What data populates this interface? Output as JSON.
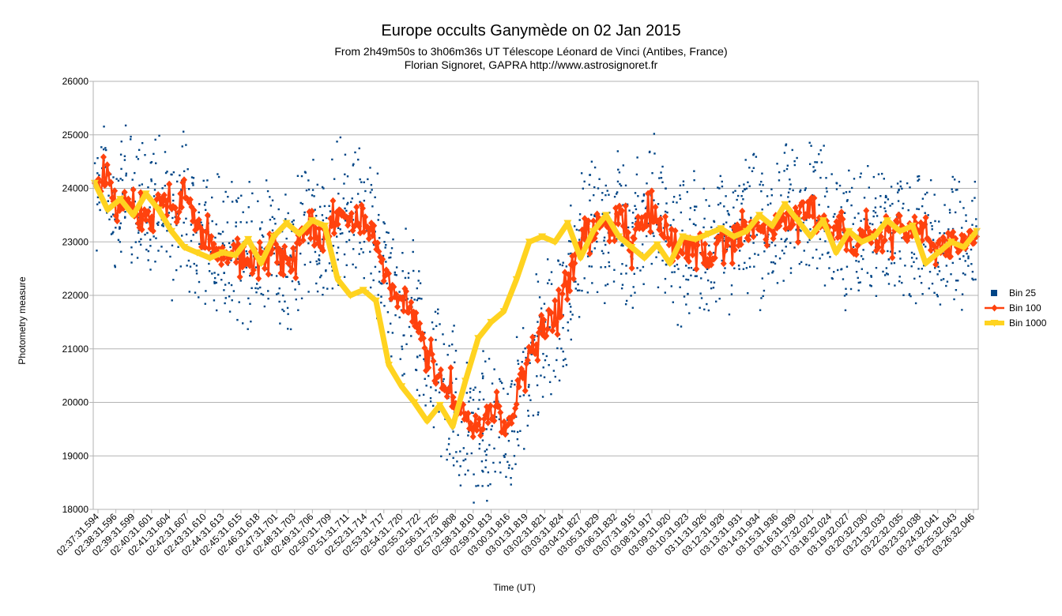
{
  "chart_data": {
    "type": "line",
    "title": "Europe occults Ganymède on 02 Jan 2015",
    "subtitle_lines": [
      "From 2h49m50s to 3h06m36s UT  Télescope Léonard de Vinci (Antibes, France)",
      "Florian Signoret, GAPRA http://www.astrosignoret.fr"
    ],
    "xlabel": "Time (UT)",
    "ylabel": "Photometry measure",
    "ylim": [
      18000,
      26000
    ],
    "yticks": [
      18000,
      19000,
      20000,
      21000,
      22000,
      23000,
      24000,
      25000,
      26000
    ],
    "grid": true,
    "legend_position": "right",
    "x_tick_labels": [
      "02:37:31.594",
      "02:38:31.596",
      "02:39:31.599",
      "02:40:31.601",
      "02:41:31.604",
      "02:42:31.607",
      "02:43:31.610",
      "02:44:31.613",
      "02:45:31.615",
      "02:46:31.618",
      "02:47:31.701",
      "02:48:31.703",
      "02:49:31.706",
      "02:50:31.709",
      "02:51:31.711",
      "02:52:31.714",
      "02:53:31.717",
      "02:54:31.720",
      "02:55:31.722",
      "02:56:31.725",
      "02:57:31.808",
      "02:58:31.810",
      "02:59:31.813",
      "03:00:31.816",
      "03:01:31.819",
      "03:02:31.821",
      "03:03:31.824",
      "03:04:31.827",
      "03:05:31.829",
      "03:06:31.832",
      "03:07:31.915",
      "03:08:31.917",
      "03:09:31.920",
      "03:10:31.923",
      "03:11:31.926",
      "03:12:31.928",
      "03:13:31.931",
      "03:14:31.934",
      "03:15:31.936",
      "03:16:31.939",
      "03:17:32.021",
      "03:18:32.024",
      "03:19:32.027",
      "03:20:32.030",
      "03:21:32.033",
      "03:22:32.035",
      "03:23:32.038",
      "03:24:32.041",
      "03:25:32.043",
      "03:26:32.046"
    ],
    "series": [
      {
        "name": "Bin 25",
        "style": "scatter",
        "color": "#004586",
        "values": [
          23800,
          24200,
          23500,
          23900,
          23600,
          23400,
          23800,
          23300,
          23900,
          23200,
          22900,
          22800,
          22700,
          22900,
          22600,
          22800,
          23000,
          22500,
          22700,
          23400,
          23000,
          23200,
          23600,
          23300,
          23500,
          23200,
          22200,
          21900,
          21800,
          21400,
          20700,
          20300,
          20000,
          19700,
          19400,
          19600,
          19800,
          19300,
          20200,
          20900,
          21300,
          21500,
          21800,
          22500,
          23200,
          23300,
          23100,
          23400,
          22800,
          23500,
          23700,
          23200,
          22900,
          22800,
          23000,
          22600,
          23100,
          23000,
          23200,
          23300,
          23100,
          23200,
          23500,
          23400,
          23800,
          23600,
          23100,
          23200,
          22900,
          23300,
          23000,
          23100,
          23400,
          23200,
          23300,
          22700,
          22800,
          23000,
          22800,
          23200
        ]
      },
      {
        "name": "Bin 100",
        "style": "line-diamond",
        "color": "#ff420e",
        "values": [
          23900,
          24300,
          23600,
          23900,
          23500,
          23300,
          23900,
          23400,
          24000,
          23300,
          23000,
          22800,
          22700,
          22800,
          22600,
          22800,
          23000,
          22500,
          22800,
          23300,
          23000,
          23300,
          23500,
          23400,
          23400,
          23100,
          22300,
          22000,
          21900,
          21500,
          20800,
          20400,
          20100,
          19800,
          19500,
          19700,
          19900,
          19400,
          20300,
          20900,
          21300,
          21600,
          21900,
          22600,
          23200,
          23300,
          23200,
          23500,
          22900,
          23400,
          23600,
          23300,
          23000,
          22800,
          23000,
          22700,
          23100,
          23000,
          23200,
          23200,
          23100,
          23300,
          23500,
          23400,
          23700,
          23500,
          23200,
          23300,
          22900,
          23200,
          23000,
          23100,
          23300,
          23200,
          23300,
          22700,
          22900,
          23000,
          22900,
          23100
        ]
      },
      {
        "name": "Bin 1000",
        "style": "line-triangle",
        "color": "#ffd320",
        "values": [
          24100,
          23600,
          23800,
          23500,
          23900,
          23600,
          23200,
          22900,
          22800,
          22700,
          22800,
          22750,
          23050,
          22600,
          23100,
          23350,
          23150,
          23400,
          23300,
          22300,
          22000,
          22100,
          21900,
          20700,
          20300,
          20000,
          19650,
          19950,
          19550,
          20400,
          21200,
          21500,
          21700,
          22300,
          23000,
          23100,
          23000,
          23350,
          22700,
          23200,
          23500,
          23100,
          22900,
          22700,
          22950,
          22600,
          23100,
          23050,
          23150,
          23250,
          23100,
          23200,
          23500,
          23300,
          23700,
          23400,
          23100,
          23400,
          22800,
          23200,
          23000,
          23100,
          23400,
          23200,
          23300,
          22600,
          22800,
          23000,
          22900,
          23200
        ]
      }
    ]
  }
}
